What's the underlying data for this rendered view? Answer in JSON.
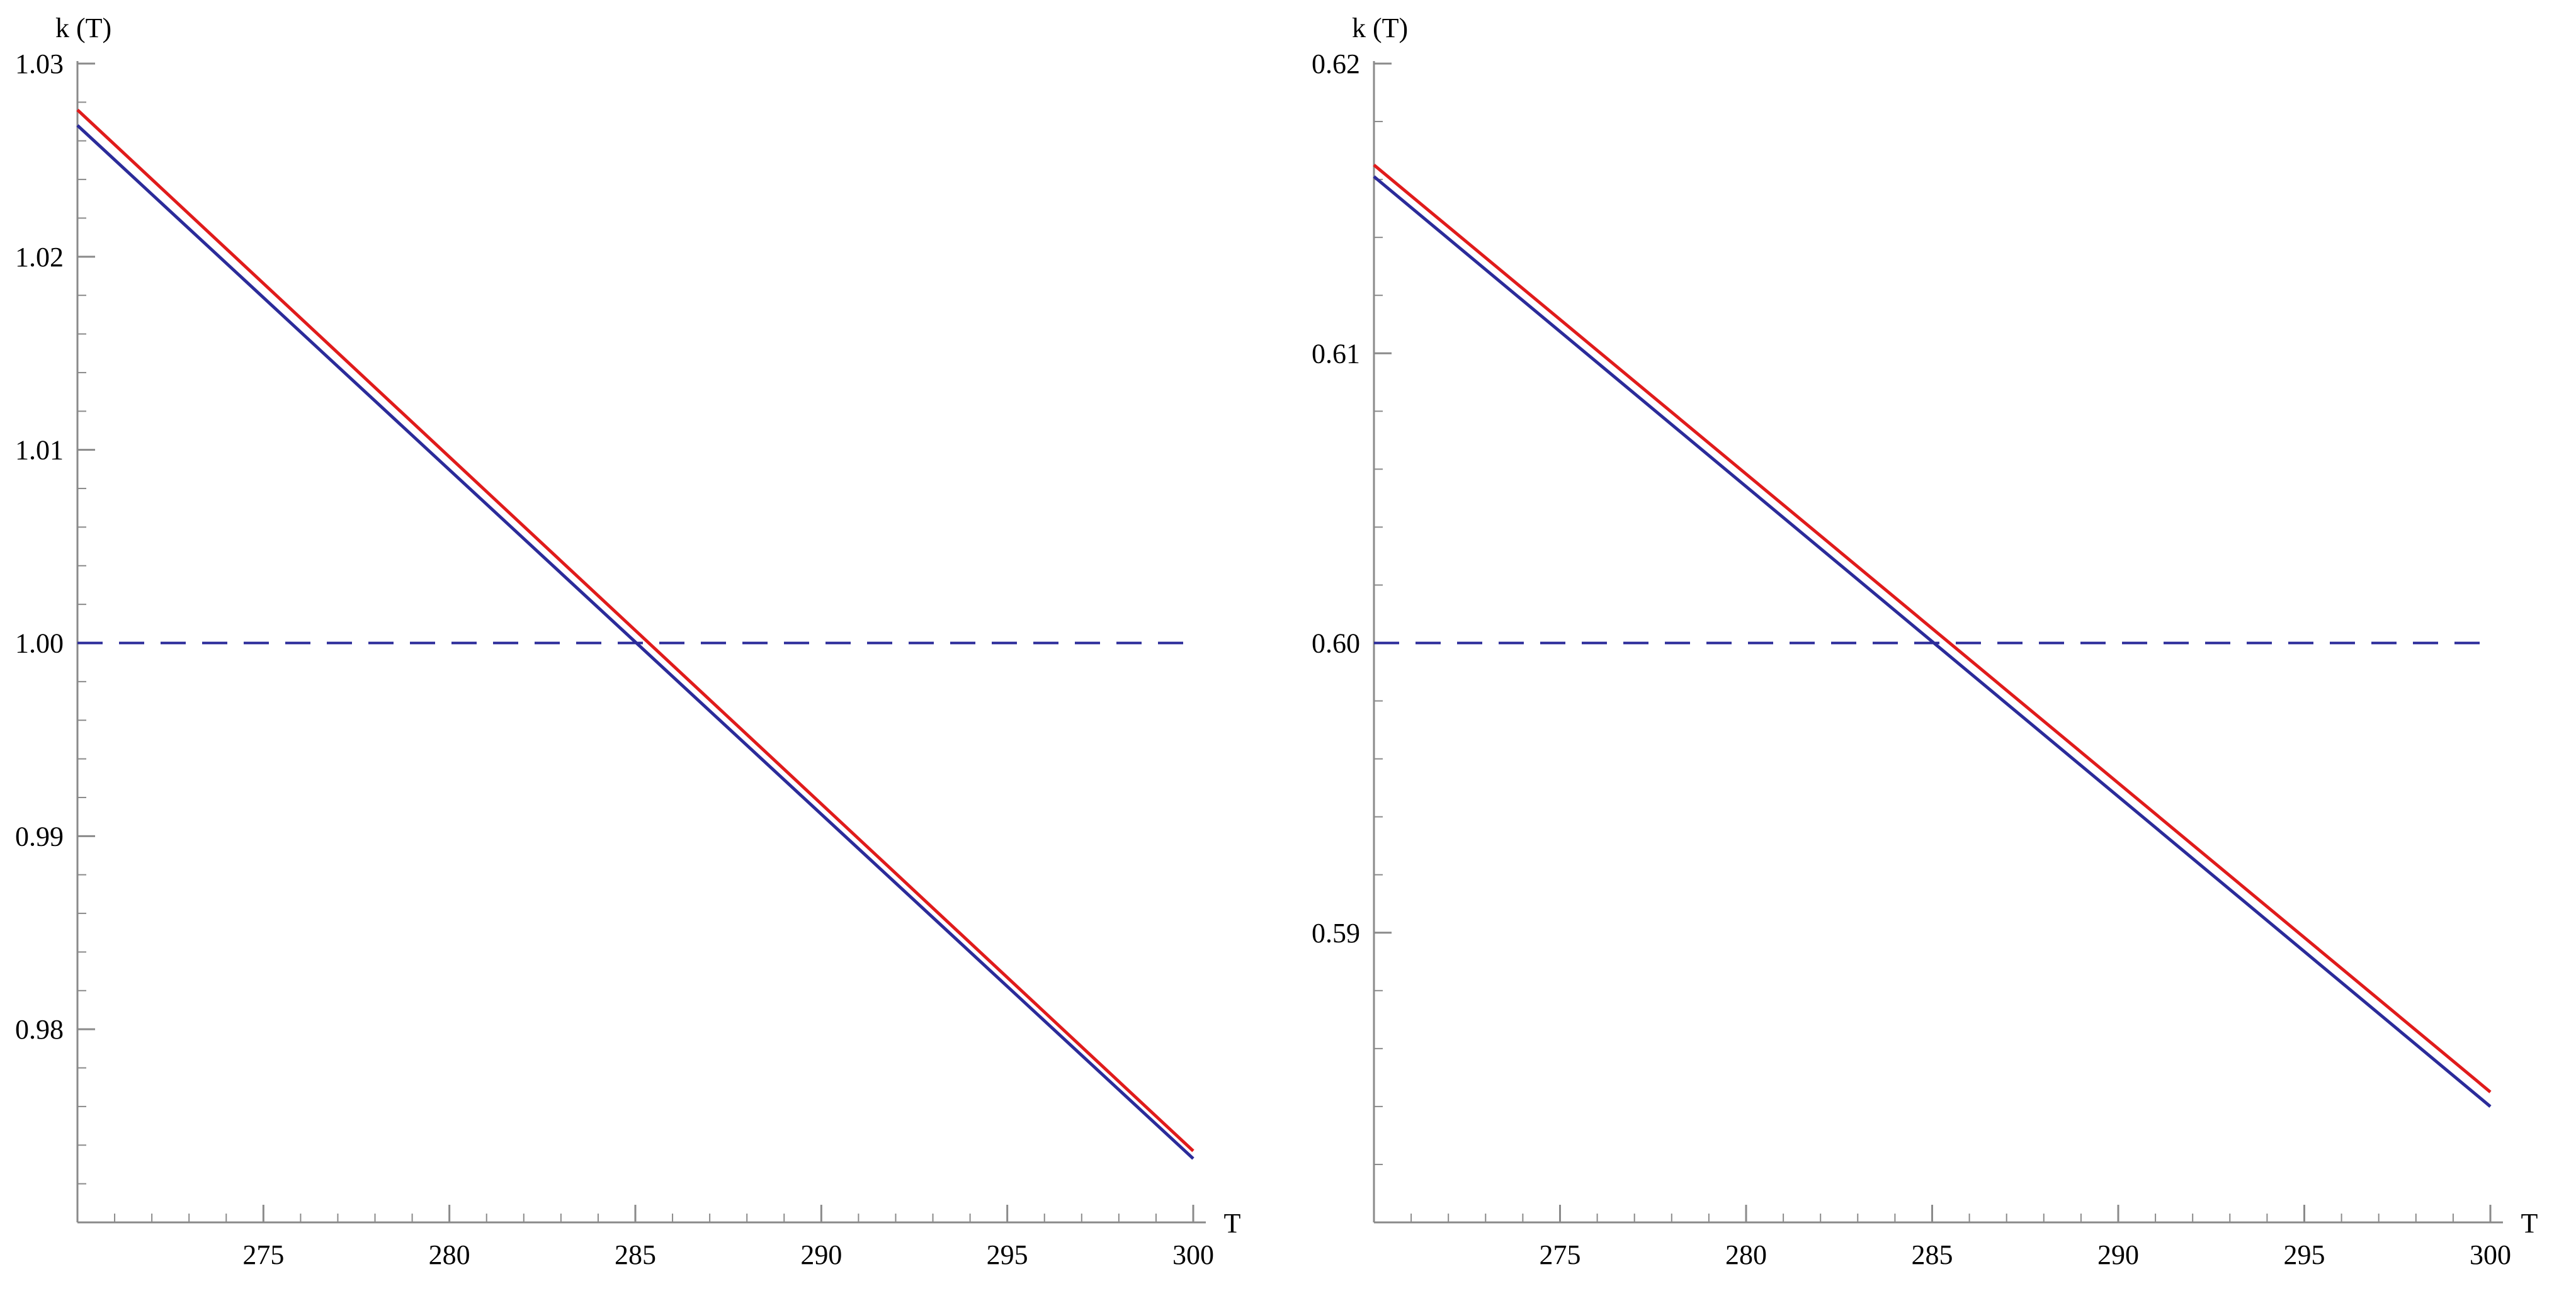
{
  "chart_data": [
    {
      "type": "line",
      "xlabel": "T",
      "ylabel": "k (T)",
      "xlim": [
        270,
        300
      ],
      "ylim": [
        0.97,
        1.03
      ],
      "x_ticks": [
        {
          "value": 275,
          "label": "275"
        },
        {
          "value": 280,
          "label": "280"
        },
        {
          "value": 285,
          "label": "285"
        },
        {
          "value": 290,
          "label": "290"
        },
        {
          "value": 295,
          "label": "295"
        },
        {
          "value": 300,
          "label": "300"
        }
      ],
      "y_ticks": [
        {
          "value": 0.98,
          "label": "0.98"
        },
        {
          "value": 0.99,
          "label": "0.99"
        },
        {
          "value": 1.0,
          "label": "1.00"
        },
        {
          "value": 1.01,
          "label": "1.01"
        },
        {
          "value": 1.02,
          "label": "1.02"
        },
        {
          "value": 1.03,
          "label": "1.03"
        }
      ],
      "grid": false,
      "legend": "none",
      "series": [
        {
          "color": "#e01b1b",
          "style": "solid",
          "x": [
            270,
            300
          ],
          "y": [
            1.0276,
            0.9737
          ]
        },
        {
          "color": "#2b2b9a",
          "style": "solid",
          "x": [
            270,
            300
          ],
          "y": [
            1.0268,
            0.9733
          ]
        },
        {
          "color": "#2b2b9a",
          "style": "dashed",
          "x": [
            270,
            300
          ],
          "y": [
            1.0,
            1.0
          ]
        }
      ]
    },
    {
      "type": "line",
      "xlabel": "T",
      "ylabel": "k (T)",
      "xlim": [
        270,
        300
      ],
      "ylim": [
        0.58,
        0.62
      ],
      "x_ticks": [
        {
          "value": 275,
          "label": "275"
        },
        {
          "value": 280,
          "label": "280"
        },
        {
          "value": 285,
          "label": "285"
        },
        {
          "value": 290,
          "label": "290"
        },
        {
          "value": 295,
          "label": "295"
        },
        {
          "value": 300,
          "label": "300"
        }
      ],
      "y_ticks": [
        {
          "value": 0.59,
          "label": "0.59"
        },
        {
          "value": 0.6,
          "label": "0.60"
        },
        {
          "value": 0.61,
          "label": "0.61"
        },
        {
          "value": 0.62,
          "label": "0.62"
        }
      ],
      "grid": false,
      "legend": "none",
      "series": [
        {
          "color": "#e01b1b",
          "style": "solid",
          "x": [
            270,
            300
          ],
          "y": [
            0.6165,
            0.5845
          ]
        },
        {
          "color": "#2b2b9a",
          "style": "solid",
          "x": [
            270,
            300
          ],
          "y": [
            0.6161,
            0.584
          ]
        },
        {
          "color": "#2b2b9a",
          "style": "dashed",
          "x": [
            270,
            300
          ],
          "y": [
            0.6,
            0.6
          ]
        }
      ]
    }
  ]
}
